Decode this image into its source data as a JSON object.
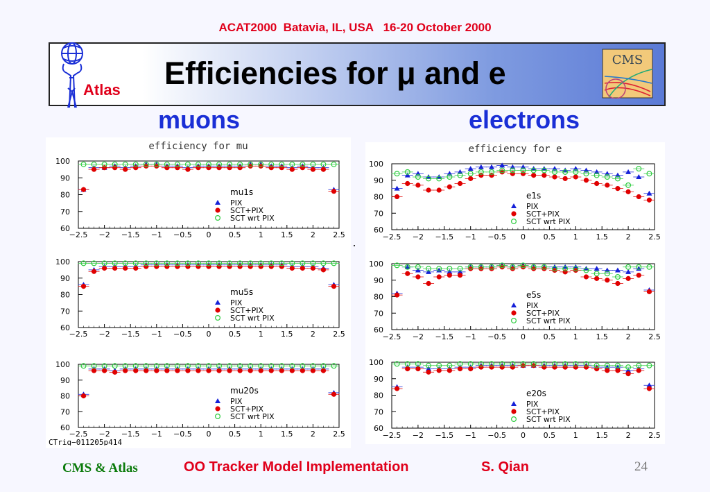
{
  "header": {
    "conference": "ACAT2000  Batavia, IL, USA   16-20 October 2000",
    "title": "Efficiencies for μ and e",
    "left_logo_text": "Atlas",
    "right_logo_text": "CMS"
  },
  "columns": {
    "left_title": "muons",
    "right_title": "electrons"
  },
  "footer": {
    "left": "CMS & Atlas",
    "center": "OO Tracker Model Implementation",
    "author": "S. Qian",
    "page": "24"
  },
  "plot_caption": "CTrig−011205p414",
  "colors": {
    "pix": "#1520d8",
    "sct": "#e00000",
    "wrt": "#2ecc40",
    "title_red": "#e0001b",
    "blue": "#1a2fd6"
  },
  "chart_data": [
    {
      "type": "scatter",
      "title": "efficiency for mu",
      "label": "mu1s",
      "xlim": [
        -2.5,
        2.5
      ],
      "ylim": [
        60,
        100
      ],
      "xticks": [
        "−2.5",
        "−2",
        "−1.5",
        "−1",
        "−0.5",
        "0",
        "0.5",
        "1",
        "1.5",
        "2",
        "2.5"
      ],
      "yticks": [
        "60",
        "70",
        "80",
        "90",
        "100"
      ],
      "legend": [
        "PIX",
        "SCT+PIX",
        "SCT wrt PIX"
      ],
      "x": [
        -2.4,
        -2.2,
        -2.0,
        -1.8,
        -1.6,
        -1.4,
        -1.2,
        -1.0,
        -0.8,
        -0.6,
        -0.4,
        -0.2,
        0.0,
        0.2,
        0.4,
        0.6,
        0.8,
        1.0,
        1.2,
        1.4,
        1.6,
        1.8,
        2.0,
        2.2,
        2.4
      ],
      "series": [
        {
          "name": "PIX",
          "values": [
            83,
            96,
            96,
            97,
            96,
            97,
            98,
            98,
            97,
            97,
            96,
            97,
            97,
            97,
            97,
            97,
            98,
            98,
            97,
            97,
            96,
            97,
            96,
            96,
            83
          ]
        },
        {
          "name": "SCT+PIX",
          "values": [
            83,
            95,
            96,
            96,
            95,
            96,
            97,
            97,
            96,
            96,
            95,
            96,
            96,
            96,
            96,
            96,
            97,
            97,
            96,
            96,
            95,
            96,
            95,
            95,
            82
          ]
        },
        {
          "name": "SCT wrt PIX",
          "values": [
            98,
            98,
            98,
            98,
            98,
            98,
            98,
            98,
            98,
            98,
            98,
            98,
            98,
            98,
            98,
            98,
            98,
            98,
            98,
            98,
            98,
            98,
            98,
            98,
            98
          ]
        }
      ]
    },
    {
      "type": "scatter",
      "title": "",
      "label": "mu5s",
      "xlim": [
        -2.5,
        2.5
      ],
      "ylim": [
        60,
        100
      ],
      "xticks": [
        "−2.5",
        "−2",
        "−1.5",
        "−1",
        "−0.5",
        "0",
        "0.5",
        "1",
        "1.5",
        "2",
        "2.5"
      ],
      "yticks": [
        "60",
        "70",
        "80",
        "90",
        "100"
      ],
      "legend": [
        "PIX",
        "SCT+PIX",
        "SCT wrt PIX"
      ],
      "x": [
        -2.4,
        -2.2,
        -2.0,
        -1.8,
        -1.6,
        -1.4,
        -1.2,
        -1.0,
        -0.8,
        -0.6,
        -0.4,
        -0.2,
        0.0,
        0.2,
        0.4,
        0.6,
        0.8,
        1.0,
        1.2,
        1.4,
        1.6,
        1.8,
        2.0,
        2.2,
        2.4
      ],
      "series": [
        {
          "name": "PIX",
          "values": [
            86,
            95,
            97,
            97,
            97,
            97,
            98,
            98,
            98,
            98,
            98,
            98,
            98,
            98,
            98,
            98,
            98,
            98,
            98,
            98,
            97,
            97,
            97,
            96,
            86
          ]
        },
        {
          "name": "SCT+PIX",
          "values": [
            85,
            94,
            96,
            96,
            96,
            96,
            97,
            97,
            97,
            97,
            97,
            97,
            97,
            97,
            97,
            97,
            97,
            97,
            97,
            97,
            96,
            96,
            96,
            95,
            85
          ]
        },
        {
          "name": "SCT wrt PIX",
          "values": [
            99,
            99,
            99,
            99,
            99,
            99,
            99,
            99,
            99,
            99,
            99,
            99,
            99,
            99,
            99,
            99,
            99,
            99,
            99,
            99,
            99,
            99,
            99,
            99,
            99
          ]
        }
      ]
    },
    {
      "type": "scatter",
      "title": "",
      "label": "mu20s",
      "xlim": [
        -2.5,
        2.5
      ],
      "ylim": [
        60,
        100
      ],
      "xticks": [
        "−2.5",
        "−2",
        "−1.5",
        "−1",
        "−0.5",
        "0",
        "0.5",
        "1",
        "1.5",
        "2",
        "2.5"
      ],
      "yticks": [
        "60",
        "70",
        "80",
        "90",
        "100"
      ],
      "legend": [
        "PIX",
        "SCT+PIX",
        "SCT wrt PIX"
      ],
      "x": [
        -2.4,
        -2.2,
        -2.0,
        -1.8,
        -1.6,
        -1.4,
        -1.2,
        -1.0,
        -0.8,
        -0.6,
        -0.4,
        -0.2,
        0.0,
        0.2,
        0.4,
        0.6,
        0.8,
        1.0,
        1.2,
        1.4,
        1.6,
        1.8,
        2.0,
        2.2,
        2.4
      ],
      "series": [
        {
          "name": "PIX",
          "values": [
            81,
            97,
            97,
            96,
            97,
            97,
            97,
            97,
            97,
            97,
            97,
            97,
            97,
            97,
            97,
            97,
            97,
            97,
            97,
            97,
            97,
            97,
            97,
            97,
            82
          ]
        },
        {
          "name": "SCT+PIX",
          "values": [
            80,
            96,
            96,
            95,
            96,
            96,
            96,
            96,
            96,
            96,
            96,
            96,
            96,
            96,
            96,
            96,
            96,
            96,
            96,
            96,
            96,
            96,
            96,
            96,
            81
          ]
        },
        {
          "name": "SCT wrt PIX",
          "values": [
            99,
            99,
            99,
            99,
            99,
            99,
            99,
            99,
            99,
            99,
            99,
            99,
            99,
            99,
            99,
            99,
            99,
            99,
            99,
            99,
            99,
            99,
            99,
            99,
            99
          ]
        }
      ]
    },
    {
      "type": "scatter",
      "title": "efficiency for e",
      "label": "e1s",
      "xlim": [
        -2.5,
        2.5
      ],
      "ylim": [
        60,
        100
      ],
      "xticks": [
        "−2.5",
        "−2",
        "−1.5",
        "−1",
        "−0.5",
        "0",
        "0.5",
        "1",
        "1.5",
        "2",
        "2.5"
      ],
      "yticks": [
        "60",
        "70",
        "80",
        "90",
        "100"
      ],
      "legend": [
        "PIX",
        "SCT+PIX",
        "SCT wrt PIX"
      ],
      "x": [
        -2.4,
        -2.2,
        -2.0,
        -1.8,
        -1.6,
        -1.4,
        -1.2,
        -1.0,
        -0.8,
        -0.6,
        -0.4,
        -0.2,
        0.0,
        0.2,
        0.4,
        0.6,
        0.8,
        1.0,
        1.2,
        1.4,
        1.6,
        1.8,
        2.0,
        2.2,
        2.4
      ],
      "series": [
        {
          "name": "PIX",
          "values": [
            85,
            93,
            94,
            92,
            92,
            94,
            95,
            97,
            98,
            98,
            99,
            98,
            98,
            97,
            97,
            97,
            96,
            97,
            96,
            95,
            94,
            93,
            95,
            92,
            82
          ]
        },
        {
          "name": "SCT+PIX",
          "values": [
            80,
            88,
            87,
            84,
            84,
            86,
            88,
            91,
            93,
            93,
            95,
            94,
            94,
            93,
            93,
            92,
            91,
            92,
            90,
            88,
            87,
            85,
            83,
            80,
            78
          ]
        },
        {
          "name": "SCT wrt PIX",
          "values": [
            94,
            95,
            92,
            91,
            91,
            92,
            93,
            94,
            95,
            95,
            96,
            96,
            96,
            96,
            96,
            95,
            95,
            95,
            94,
            93,
            92,
            91,
            87,
            97,
            94
          ]
        }
      ]
    },
    {
      "type": "scatter",
      "title": "",
      "label": "e5s",
      "xlim": [
        -2.5,
        2.5
      ],
      "ylim": [
        60,
        100
      ],
      "xticks": [
        "−2.5",
        "−2",
        "−1.5",
        "−1",
        "−0.5",
        "0",
        "0.5",
        "1",
        "1.5",
        "2",
        "2.5"
      ],
      "yticks": [
        "60",
        "70",
        "80",
        "90",
        "100"
      ],
      "legend": [
        "PIX",
        "SCT+PIX",
        "SCT wrt PIX"
      ],
      "x": [
        -2.4,
        -2.2,
        -2.0,
        -1.8,
        -1.6,
        -1.4,
        -1.2,
        -1.0,
        -0.8,
        -0.6,
        -0.4,
        -0.2,
        0.0,
        0.2,
        0.4,
        0.6,
        0.8,
        1.0,
        1.2,
        1.4,
        1.6,
        1.8,
        2.0,
        2.2,
        2.4
      ],
      "series": [
        {
          "name": "PIX",
          "values": [
            82,
            98,
            96,
            95,
            96,
            95,
            95,
            98,
            98,
            98,
            99,
            98,
            99,
            98,
            98,
            98,
            98,
            98,
            97,
            97,
            96,
            96,
            95,
            97,
            84
          ]
        },
        {
          "name": "SCT+PIX",
          "values": [
            81,
            94,
            92,
            88,
            92,
            93,
            93,
            97,
            97,
            97,
            98,
            97,
            98,
            97,
            97,
            96,
            95,
            96,
            92,
            91,
            90,
            88,
            91,
            93,
            83
          ]
        },
        {
          "name": "SCT wrt PIX",
          "values": [
            99,
            98,
            98,
            97,
            97,
            97,
            97,
            98,
            98,
            98,
            99,
            98,
            99,
            98,
            98,
            97,
            97,
            97,
            96,
            94,
            94,
            92,
            98,
            98,
            98
          ]
        }
      ]
    },
    {
      "type": "scatter",
      "title": "",
      "label": "e20s",
      "xlim": [
        -2.5,
        2.5
      ],
      "ylim": [
        60,
        100
      ],
      "xticks": [
        "−2.5",
        "−2",
        "−1.5",
        "−1",
        "−0.5",
        "0",
        "0.5",
        "1",
        "1.5",
        "2",
        "2.5"
      ],
      "yticks": [
        "60",
        "70",
        "80",
        "90",
        "100"
      ],
      "legend": [
        "PIX",
        "SCT+PIX",
        "SCT wrt PIX"
      ],
      "x": [
        -2.4,
        -2.2,
        -2.0,
        -1.8,
        -1.6,
        -1.4,
        -1.2,
        -1.0,
        -0.8,
        -0.6,
        -0.4,
        -0.2,
        0.0,
        0.2,
        0.4,
        0.6,
        0.8,
        1.0,
        1.2,
        1.4,
        1.6,
        1.8,
        2.0,
        2.2,
        2.4
      ],
      "series": [
        {
          "name": "PIX",
          "values": [
            85,
            97,
            97,
            96,
            96,
            96,
            97,
            97,
            98,
            98,
            98,
            98,
            98,
            98,
            98,
            98,
            98,
            98,
            98,
            97,
            97,
            97,
            95,
            96,
            86
          ]
        },
        {
          "name": "SCT+PIX",
          "values": [
            84,
            96,
            96,
            94,
            95,
            95,
            96,
            96,
            97,
            97,
            97,
            97,
            98,
            98,
            97,
            97,
            97,
            97,
            97,
            96,
            95,
            95,
            93,
            95,
            84
          ]
        },
        {
          "name": "SCT wrt PIX",
          "values": [
            99,
            99,
            99,
            98,
            98,
            98,
            99,
            99,
            99,
            99,
            99,
            99,
            99,
            99,
            99,
            99,
            99,
            99,
            99,
            98,
            98,
            98,
            97,
            98,
            98
          ]
        }
      ]
    }
  ]
}
